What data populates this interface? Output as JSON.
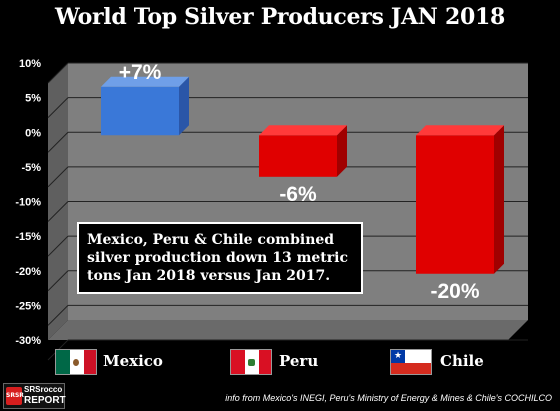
{
  "chart_data": {
    "type": "bar",
    "title": "World Top Silver Producers JAN 2018",
    "categories": [
      "Mexico",
      "Peru",
      "Chile"
    ],
    "values": [
      7,
      -6,
      -20
    ],
    "data_labels": [
      "+7%",
      "-6%",
      "-20%"
    ],
    "y_ticks": [
      "10%",
      "5%",
      "0%",
      "-5%",
      "-10%",
      "-15%",
      "-20%",
      "-25%",
      "-30%"
    ],
    "ylim": [
      -30,
      10
    ],
    "grid": true,
    "legend": "bottom",
    "colors": {
      "Mexico": "#3a78d8",
      "Peru": "#e00000",
      "Chile": "#e00000"
    },
    "annotation": "Mexico, Peru & Chile combined silver production down 13 metric tons Jan 2018 versus Jan 2017."
  },
  "legend_flags": [
    "mexico-flag-icon",
    "peru-flag-icon",
    "chile-flag-icon"
  ],
  "logo": {
    "line1": "SRSrocco",
    "line2": "REPORT",
    "mark": "SRSR"
  },
  "source": "info from Mexico's INEGI, Peru's Ministry of Energy & Mines & Chile's COCHILCO"
}
